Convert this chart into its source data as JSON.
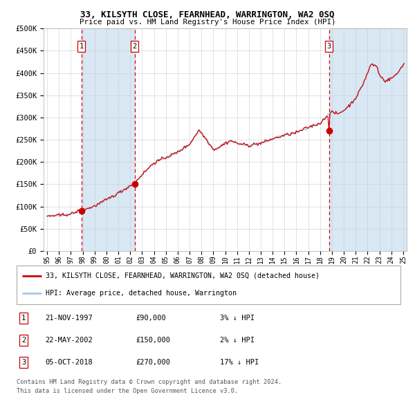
{
  "title": "33, KILSYTH CLOSE, FEARNHEAD, WARRINGTON, WA2 0SQ",
  "subtitle": "Price paid vs. HM Land Registry's House Price Index (HPI)",
  "legend_line1": "33, KILSYTH CLOSE, FEARNHEAD, WARRINGTON, WA2 0SQ (detached house)",
  "legend_line2": "HPI: Average price, detached house, Warrington",
  "transactions": [
    {
      "num": 1,
      "date": "21-NOV-1997",
      "price": 90000,
      "t_year": 1997.88,
      "pct": "3%",
      "dir": "↓"
    },
    {
      "num": 2,
      "date": "22-MAY-2002",
      "price": 150000,
      "t_year": 2002.38,
      "pct": "2%",
      "dir": "↓"
    },
    {
      "num": 3,
      "date": "05-OCT-2018",
      "price": 270000,
      "t_year": 2018.75,
      "pct": "17%",
      "dir": "↓"
    }
  ],
  "footer1": "Contains HM Land Registry data © Crown copyright and database right 2024.",
  "footer2": "This data is licensed under the Open Government Licence v3.0.",
  "hpi_color": "#a8c8e8",
  "price_color": "#cc0000",
  "dot_color": "#cc0000",
  "vline_color": "#dd0000",
  "bg_shade_color": "#d8e8f4",
  "grid_color": "#cccccc",
  "ylim": [
    0,
    500000
  ],
  "yticks": [
    0,
    50000,
    100000,
    150000,
    200000,
    250000,
    300000,
    350000,
    400000,
    450000,
    500000
  ],
  "ytick_labels": [
    "£0",
    "£50K",
    "£100K",
    "£150K",
    "£200K",
    "£250K",
    "£300K",
    "£350K",
    "£400K",
    "£450K",
    "£500K"
  ],
  "start_year": 1995,
  "end_year": 2025,
  "xtick_years": [
    1995,
    1996,
    1997,
    1998,
    1999,
    2000,
    2001,
    2002,
    2003,
    2004,
    2005,
    2006,
    2007,
    2008,
    2009,
    2010,
    2011,
    2012,
    2013,
    2014,
    2015,
    2016,
    2017,
    2018,
    2019,
    2020,
    2021,
    2022,
    2023,
    2024,
    2025
  ]
}
